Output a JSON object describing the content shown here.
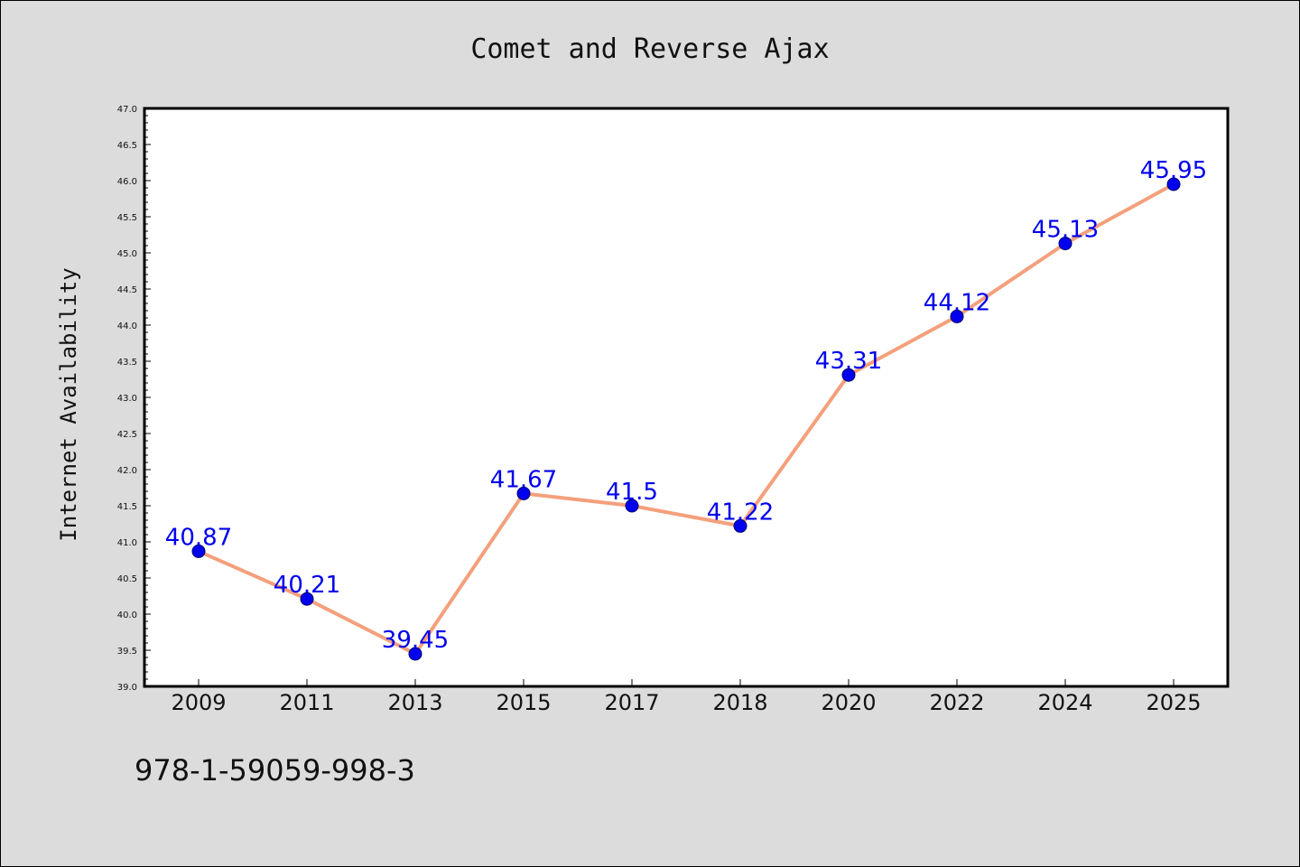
{
  "chart_data": {
    "type": "line",
    "title": "Comet and Reverse Ajax",
    "xlabel": "",
    "ylabel": "Internet Availability",
    "categories": [
      "2009",
      "2011",
      "2013",
      "2015",
      "2017",
      "2018",
      "2020",
      "2022",
      "2024",
      "2025"
    ],
    "values": [
      40.87,
      40.21,
      39.45,
      41.67,
      41.5,
      41.22,
      43.31,
      44.12,
      45.13,
      45.95
    ],
    "data_labels": [
      "40.87",
      "40.21",
      "39.45",
      "41.67",
      "41.5",
      "41.22",
      "43.31",
      "44.12",
      "45.13",
      "45.95"
    ],
    "ylim": [
      39.0,
      47.0
    ],
    "yticks": [
      "39.0",
      "39.5",
      "40.0",
      "40.5",
      "41.0",
      "41.5",
      "42.0",
      "42.5",
      "43.0",
      "43.5",
      "44.0",
      "44.5",
      "45.0",
      "45.5",
      "46.0",
      "46.5",
      "47.0"
    ],
    "grid": false,
    "legend": "none",
    "line_color": "#f4a07c",
    "marker_color": "#0000ee",
    "label_color": "#0000ee",
    "background_color": "#dcdcdc",
    "plot_background_color": "#ffffff"
  },
  "footer": {
    "isbn": "978-1-59059-998-3"
  }
}
